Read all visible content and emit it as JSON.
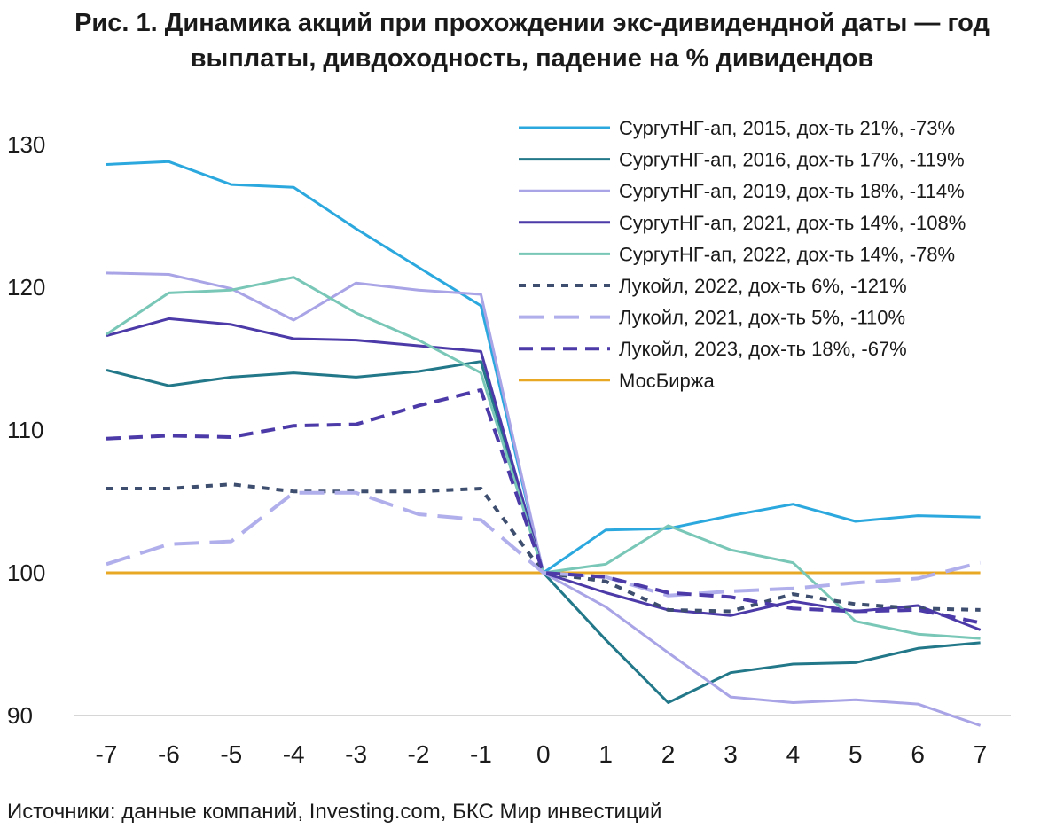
{
  "title_line1": "Рис. 1. Динамика акций при прохождении экс-дивидендной даты — год",
  "title_line2": "выплаты, дивдоходность, падение на % дивидендов",
  "source": "Источники: данные компаний, Investing.com, БКС Мир инвестиций",
  "chart_data": {
    "type": "line",
    "x": [
      -7,
      -6,
      -5,
      -4,
      -3,
      -2,
      -1,
      0,
      1,
      2,
      3,
      4,
      5,
      6,
      7
    ],
    "x_tick_labels": [
      "-7",
      "-6",
      "-5",
      "-4",
      "-3",
      "-2",
      "-1",
      "0",
      "1",
      "2",
      "3",
      "4",
      "5",
      "6",
      "7"
    ],
    "y_ticks": [
      90,
      100,
      110,
      120,
      130
    ],
    "ylim": [
      90,
      130
    ],
    "grid": false,
    "legend_position": "top-right",
    "series": [
      {
        "name": "СургутНГ-ап, 2015, дох-ть 21%, -73%",
        "color": "#2BA8DE",
        "dash": "solid",
        "values": [
          128.6,
          128.8,
          127.2,
          127.0,
          124.1,
          121.4,
          118.7,
          100.0,
          103.0,
          103.1,
          104.0,
          104.8,
          103.6,
          104.0,
          103.9
        ]
      },
      {
        "name": "СургутНГ-ап, 2016, дох-ть 17%, -119%",
        "color": "#227789",
        "dash": "solid",
        "values": [
          114.2,
          113.1,
          113.7,
          114.0,
          113.7,
          114.1,
          114.8,
          100.0,
          95.3,
          90.9,
          93.0,
          93.6,
          93.7,
          94.7,
          95.1
        ]
      },
      {
        "name": "СургутНГ-ап, 2019, дох-ть 18%, -114%",
        "color": "#A8A4E6",
        "dash": "solid",
        "values": [
          121.0,
          120.9,
          119.9,
          117.7,
          120.3,
          119.8,
          119.5,
          100.0,
          97.6,
          94.4,
          91.3,
          90.9,
          91.1,
          90.8,
          89.3
        ]
      },
      {
        "name": "СургутНГ-ап, 2021, дох-ть 14%, -108%",
        "color": "#4B3AA8",
        "dash": "solid",
        "values": [
          116.6,
          117.8,
          117.4,
          116.4,
          116.3,
          115.9,
          115.5,
          100.0,
          98.6,
          97.4,
          97.0,
          98.0,
          97.3,
          97.7,
          96.0
        ]
      },
      {
        "name": "СургутНГ-ап, 2022, дох-ть 14%, -78%",
        "color": "#79C7B7",
        "dash": "solid",
        "values": [
          116.7,
          119.6,
          119.8,
          120.7,
          118.2,
          116.3,
          114.0,
          100.0,
          100.6,
          103.3,
          101.6,
          100.7,
          96.6,
          95.7,
          95.4
        ]
      },
      {
        "name": "Лукойл, 2022, дох-ть 6%, -121%",
        "color": "#3D4E6E",
        "dash": "short",
        "values": [
          105.9,
          105.9,
          106.2,
          105.7,
          105.7,
          105.7,
          105.9,
          100.0,
          99.4,
          97.4,
          97.3,
          98.5,
          97.8,
          97.5,
          97.4
        ]
      },
      {
        "name": "Лукойл, 2021, дох-ть 5%, -110%",
        "color": "#B1AEEC",
        "dash": "long",
        "values": [
          100.6,
          102.0,
          102.2,
          105.6,
          105.6,
          104.1,
          103.7,
          100.0,
          99.7,
          98.4,
          98.7,
          98.9,
          99.3,
          99.6,
          100.7
        ]
      },
      {
        "name": "Лукойл, 2023, дох-ть 18%, -67%",
        "color": "#4B3AA8",
        "dash": "medium",
        "values": [
          109.4,
          109.6,
          109.5,
          110.3,
          110.4,
          111.7,
          112.8,
          100.0,
          99.7,
          98.6,
          98.3,
          97.5,
          97.3,
          97.4,
          96.5
        ]
      },
      {
        "name": "МосБиржа",
        "color": "#E8A824",
        "dash": "solid",
        "values": [
          100,
          100,
          100,
          100,
          100,
          100,
          100,
          100,
          100,
          100,
          100,
          100,
          100,
          100,
          100
        ]
      }
    ]
  }
}
